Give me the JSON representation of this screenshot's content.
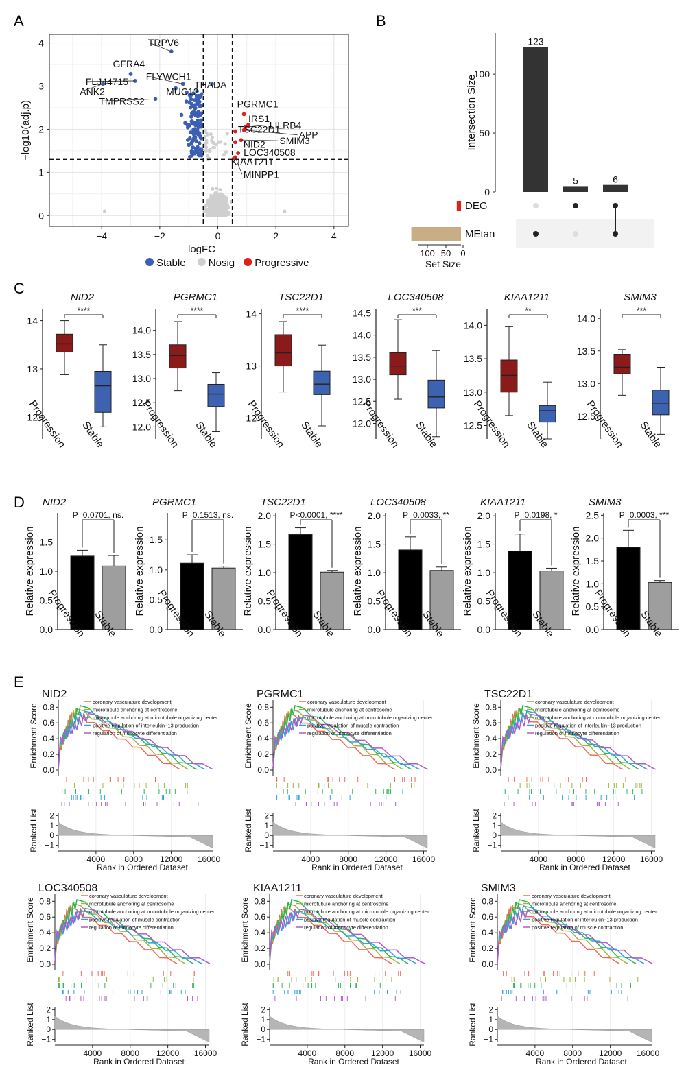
{
  "panel_labels": {
    "A": "A",
    "B": "B",
    "C": "C",
    "D": "D",
    "E": "E"
  },
  "colors": {
    "stable": "#3b5fb5",
    "nosig": "#cfcfcf",
    "progressive": "#e0201b",
    "progression_box": "#8b1a1a",
    "stable_box": "#3d63b0",
    "bar_progression": "#000000",
    "bar_stable": "#9e9e9e",
    "upset_bar": "#333333",
    "deg_bar": "#e0201b",
    "metan_bar": "#c9ae85"
  },
  "chart_data": [
    {
      "id": "volcano",
      "type": "scatter",
      "xlabel": "logFC",
      "ylabel": "−log10(adj.p)",
      "xlim": [
        -5.8,
        4.5
      ],
      "ylim": [
        -0.25,
        4.2
      ],
      "xticks": [
        -4,
        -2,
        0,
        2,
        4
      ],
      "yticks": [
        0,
        1,
        2,
        3,
        4
      ],
      "xtick_labels": [
        "−4",
        "−2",
        "0",
        "2",
        "4"
      ],
      "ytick_labels": [
        "0",
        "1",
        "2",
        "3",
        "4"
      ],
      "thresholds": {
        "logfc": [
          -0.5,
          0.5
        ],
        "neglog_p": 1.3
      },
      "legend": [
        {
          "name": "Stable",
          "color": "#3b5fb5"
        },
        {
          "name": "Nosig",
          "color": "#cfcfcf"
        },
        {
          "name": "Progressive",
          "color": "#e0201b"
        }
      ],
      "labeled_points": [
        {
          "label": "TRPV6",
          "x": -1.6,
          "y": 3.8,
          "group": "stable"
        },
        {
          "label": "GFRA4",
          "x": -3.0,
          "y": 3.28,
          "group": "stable"
        },
        {
          "label": "FLJ44715",
          "x": -2.85,
          "y": 3.12,
          "group": "stable"
        },
        {
          "label": "ANK2",
          "x": -3.95,
          "y": 3.05,
          "group": "stable"
        },
        {
          "label": "FLYWCH1",
          "x": -1.2,
          "y": 3.05,
          "group": "stable"
        },
        {
          "label": "MUC12",
          "x": -1.45,
          "y": 2.95,
          "group": "stable"
        },
        {
          "label": "THADA",
          "x": -0.2,
          "y": 3.05,
          "group": "stable"
        },
        {
          "label": "TMPRSS2",
          "x": -2.15,
          "y": 2.7,
          "group": "stable"
        },
        {
          "label": "PGRMC1",
          "x": 0.9,
          "y": 2.35,
          "group": "progressive"
        },
        {
          "label": "IRS1",
          "x": 1.05,
          "y": 2.1,
          "group": "progressive"
        },
        {
          "label": "LILRB4",
          "x": 0.95,
          "y": 2.05,
          "group": "progressive"
        },
        {
          "label": "TSC22D1",
          "x": 0.6,
          "y": 1.95,
          "group": "progressive"
        },
        {
          "label": "APP",
          "x": 0.9,
          "y": 1.98,
          "group": "progressive"
        },
        {
          "label": "NID2",
          "x": 0.6,
          "y": 1.7,
          "group": "progressive"
        },
        {
          "label": "SMIM3",
          "x": 0.8,
          "y": 1.75,
          "group": "progressive"
        },
        {
          "label": "LOC340508",
          "x": 0.7,
          "y": 1.45,
          "group": "progressive"
        },
        {
          "label": "KIAA1211",
          "x": 0.55,
          "y": 1.32,
          "group": "progressive"
        },
        {
          "label": "MINPP1",
          "x": 0.6,
          "y": 1.35,
          "group": "progressive"
        }
      ]
    },
    {
      "id": "upset",
      "type": "bar",
      "ylabel": "Intersection Size",
      "yticks": [
        0,
        50,
        100
      ],
      "ylim": [
        0,
        135
      ],
      "categories": [
        "MEtan only",
        "DEG only",
        "DEG & MEtan"
      ],
      "values": [
        123,
        5,
        6
      ],
      "sets": [
        {
          "name": "DEG",
          "size": 11
        },
        {
          "name": "MEtan",
          "size": 129
        }
      ],
      "membership": [
        [
          false,
          true
        ],
        [
          true,
          false
        ],
        [
          true,
          true
        ]
      ],
      "set_size_label": "Set Size",
      "set_size_ticks": [
        "100",
        "50",
        "0"
      ]
    },
    {
      "id": "boxplots",
      "type": "box",
      "categories": [
        "Progression",
        "Stable"
      ],
      "genes": [
        {
          "gene": "NID2",
          "sig": "****",
          "ylim": [
            11.55,
            14.25
          ],
          "yticks": [
            12,
            13,
            14
          ],
          "ytick_labels": [
            "12",
            "13",
            "14"
          ],
          "progression": {
            "min": 12.88,
            "q1": 13.35,
            "median": 13.52,
            "q3": 13.72,
            "max": 14.0
          },
          "stable": {
            "min": 11.8,
            "q1": 12.1,
            "median": 12.65,
            "q3": 12.95,
            "max": 13.5
          }
        },
        {
          "gene": "PGRMC1",
          "sig": "****",
          "ylim": [
            11.75,
            14.45
          ],
          "yticks": [
            12.0,
            12.5,
            13.0,
            13.5,
            14.0
          ],
          "ytick_labels": [
            "12.0",
            "12.5",
            "13.0",
            "13.5",
            "14.0"
          ],
          "progression": {
            "min": 12.75,
            "q1": 13.22,
            "median": 13.48,
            "q3": 13.7,
            "max": 14.18
          },
          "stable": {
            "min": 11.9,
            "q1": 12.42,
            "median": 12.68,
            "q3": 12.88,
            "max": 13.12
          }
        },
        {
          "gene": "TSC22D1",
          "sig": "****",
          "ylim": [
            11.6,
            14.1
          ],
          "yticks": [
            12,
            13,
            14
          ],
          "ytick_labels": [
            "12",
            "13",
            "14"
          ],
          "progression": {
            "min": 12.5,
            "q1": 13.0,
            "median": 13.25,
            "q3": 13.6,
            "max": 13.85
          },
          "stable": {
            "min": 11.85,
            "q1": 12.45,
            "median": 12.65,
            "q3": 12.9,
            "max": 13.4
          }
        },
        {
          "gene": "LOC340508",
          "sig": "***",
          "ylim": [
            11.65,
            14.6
          ],
          "yticks": [
            12.0,
            12.5,
            13.0,
            13.5,
            14.0,
            14.5
          ],
          "ytick_labels": [
            "12.0",
            "12.5",
            "13.0",
            "13.5",
            "14.0",
            "14.5"
          ],
          "progression": {
            "min": 12.55,
            "q1": 13.1,
            "median": 13.3,
            "q3": 13.6,
            "max": 14.35
          },
          "stable": {
            "min": 11.7,
            "q1": 12.35,
            "median": 12.6,
            "q3": 12.98,
            "max": 13.65
          }
        },
        {
          "gene": "KIAA1211",
          "sig": "**",
          "ylim": [
            12.3,
            14.25
          ],
          "yticks": [
            12.5,
            13.0,
            13.5,
            14.0
          ],
          "ytick_labels": [
            "12.5",
            "13.0",
            "13.5",
            "14.0"
          ],
          "progression": {
            "min": 12.65,
            "q1": 13.0,
            "median": 13.25,
            "q3": 13.48,
            "max": 13.98
          },
          "stable": {
            "min": 12.3,
            "q1": 12.55,
            "median": 12.72,
            "q3": 12.8,
            "max": 13.15
          }
        },
        {
          "gene": "SMIM3",
          "sig": "***",
          "ylim": [
            12.15,
            14.15
          ],
          "yticks": [
            12.5,
            13.0,
            13.5,
            14.0
          ],
          "ytick_labels": [
            "12.5",
            "13.0",
            "13.5",
            "14.0"
          ],
          "progression": {
            "min": 12.82,
            "q1": 13.15,
            "median": 13.25,
            "q3": 13.45,
            "max": 13.52
          },
          "stable": {
            "min": 12.22,
            "q1": 12.52,
            "median": 12.7,
            "q3": 12.9,
            "max": 13.25
          }
        }
      ]
    },
    {
      "id": "qpcr",
      "type": "bar",
      "ylabel": "Relative expression",
      "categories": [
        "Progression",
        "Stable"
      ],
      "genes": [
        {
          "gene": "NID2",
          "pval": "P=0.0701, ns.",
          "ymax": 2.0,
          "yticks": [
            0.0,
            0.5,
            1.0,
            1.5
          ],
          "ytick_labels": [
            "0.0",
            "0.5",
            "1.0",
            "1.5"
          ],
          "values": [
            1.26,
            1.09
          ],
          "errors": [
            0.1,
            0.18
          ]
        },
        {
          "gene": "PGRMC1",
          "pval": "P=0.1513, ns.",
          "ymax": 1.95,
          "yticks": [
            0.0,
            0.5,
            1.0,
            1.5
          ],
          "ytick_labels": [
            "0.0",
            "0.5",
            "1.0",
            "1.5"
          ],
          "values": [
            1.11,
            1.03
          ],
          "errors": [
            0.14,
            0.03
          ]
        },
        {
          "gene": "TSC22D1",
          "pval": "P<0.0001, ****",
          "ymax": 2.05,
          "yticks": [
            0.0,
            0.5,
            1.0,
            1.5,
            2.0
          ],
          "ytick_labels": [
            "0.0",
            "0.5",
            "1.0",
            "1.5",
            "2.0"
          ],
          "values": [
            1.67,
            1.01
          ],
          "errors": [
            0.12,
            0.03
          ]
        },
        {
          "gene": "LOC340508",
          "pval": "P=0.0033, **",
          "ymax": 2.05,
          "yticks": [
            0.0,
            0.5,
            1.0,
            1.5,
            2.0
          ],
          "ytick_labels": [
            "0.0",
            "0.5",
            "1.0",
            "1.5",
            "2.0"
          ],
          "values": [
            1.4,
            1.04
          ],
          "errors": [
            0.23,
            0.06
          ]
        },
        {
          "gene": "KIAA1211",
          "pval": "P=0.0198, *",
          "ymax": 2.05,
          "yticks": [
            0.0,
            0.5,
            1.0,
            1.5,
            2.0
          ],
          "ytick_labels": [
            "0.0",
            "0.5",
            "1.0",
            "1.5",
            "2.0"
          ],
          "values": [
            1.38,
            1.03
          ],
          "errors": [
            0.3,
            0.05
          ]
        },
        {
          "gene": "SMIM3",
          "pval": "P=0.0003, ***",
          "ymax": 2.55,
          "yticks": [
            0.0,
            0.5,
            1.0,
            1.5,
            2.0,
            2.5
          ],
          "ytick_labels": [
            "0.0",
            "0.5",
            "1.0",
            "1.5",
            "2.0",
            "2.5"
          ],
          "values": [
            1.8,
            1.03
          ],
          "errors": [
            0.37,
            0.04
          ]
        }
      ]
    },
    {
      "id": "gsea",
      "type": "line",
      "ylabel": "Enrichment Score",
      "ranked_ylabel": "Ranked List",
      "xlabel": "Rank in Ordered Dataset",
      "xlim": [
        0,
        16500
      ],
      "xticks": [
        "4000",
        "8000",
        "12000",
        "16000"
      ],
      "es_ticks": [
        "0.0",
        "0.2",
        "0.4",
        "0.6",
        "0.8"
      ],
      "ranked_ticks": [
        "2",
        "1",
        "0",
        "−1"
      ],
      "line_colors": [
        "#ef6a5b",
        "#9db53a",
        "#2fb55a",
        "#2ea3d6",
        "#b05bc9"
      ],
      "panels": [
        {
          "gene": "NID2",
          "terms": [
            "coronary vasculature development",
            "microtubule anchoring at centrosome",
            "microtubule anchoring at microtubule organizing center",
            "positive regulation of interleukin−13 production",
            "regulation of monocyte differentiation"
          ],
          "peaks": [
            0.73,
            0.78,
            0.82,
            0.75,
            0.72
          ]
        },
        {
          "gene": "PGRMC1",
          "terms": [
            "coronary vasculature development",
            "microtubule anchoring at centrosome",
            "microtubule anchoring at microtubule organizing center",
            "positive regulation of muscle contraction",
            "regulation of monocyte differentiation"
          ],
          "peaks": [
            0.72,
            0.77,
            0.82,
            0.66,
            0.7
          ]
        },
        {
          "gene": "TSC22D1",
          "terms": [
            "coronary vasculature development",
            "microtubule anchoring at centrosome",
            "microtubule anchoring at microtubule organizing center",
            "positive regulation of interleukin−13 production",
            "regulation of monocyte differentiation"
          ],
          "peaks": [
            0.74,
            0.78,
            0.82,
            0.75,
            0.71
          ]
        },
        {
          "gene": "LOC340508",
          "terms": [
            "coronary vasculature development",
            "microtubule anchoring at centrosome",
            "microtubule anchoring at microtubule organizing center",
            "positive regulation of muscle contraction",
            "regulation of monocyte differentiation"
          ],
          "peaks": [
            0.72,
            0.77,
            0.82,
            0.68,
            0.71
          ]
        },
        {
          "gene": "KIAA1211",
          "terms": [
            "coronary vasculature development",
            "microtubule anchoring at centrosome",
            "microtubule anchoring at microtubule organizing center",
            "positive regulation of muscle contraction",
            "regulation of monocyte differentiation"
          ],
          "peaks": [
            0.72,
            0.77,
            0.82,
            0.66,
            0.7
          ]
        },
        {
          "gene": "SMIM3",
          "terms": [
            "coronary vasculature development",
            "microtubule anchoring at centrosome",
            "microtubule anchoring at microtubule organizing center",
            "positive regulation of interleukin−13 production",
            "positive regulation of muscle contraction"
          ],
          "peaks": [
            0.73,
            0.78,
            0.82,
            0.74,
            0.69
          ]
        }
      ]
    }
  ]
}
